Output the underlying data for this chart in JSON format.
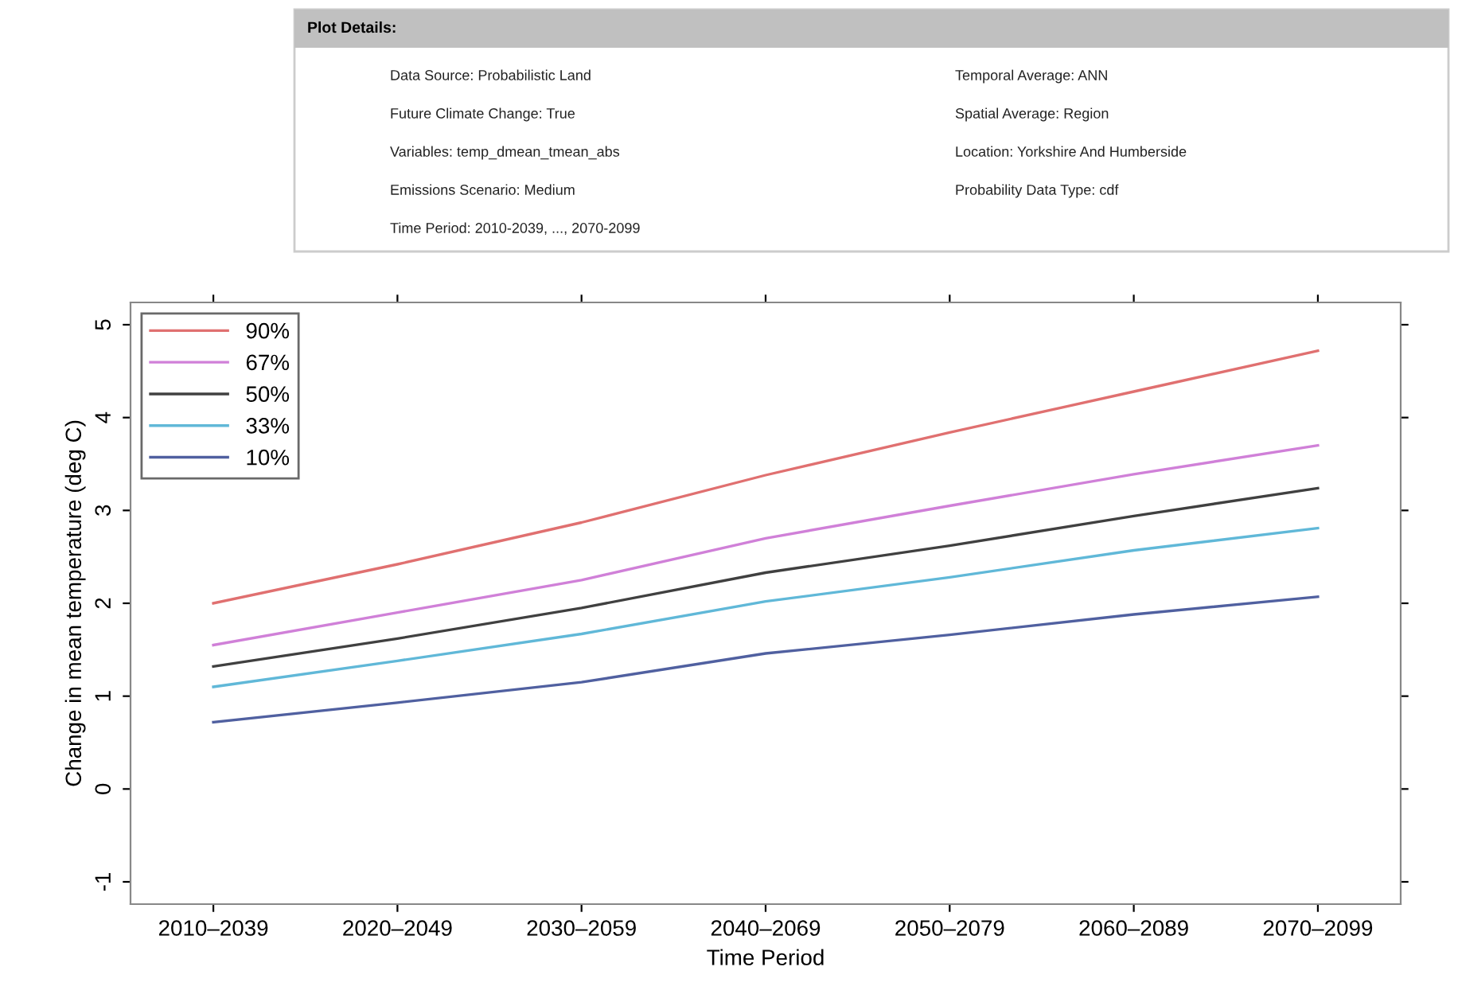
{
  "chart_data": {
    "type": "line",
    "title": "Plot Details:",
    "annotations": [
      "Data Source: Probabilistic Land",
      "Future Climate Change: True",
      "Variables: temp_dmean_tmean_abs",
      "Emissions Scenario: Medium",
      "Time Period: 2010-2039, ..., 2070-2099",
      "Temporal Average: ANN",
      "Spatial Average: Region",
      "Location: Yorkshire And Humberside",
      "Probability Data Type: cdf"
    ],
    "xlabel": "Time Period",
    "ylabel": "Change in mean temperature (deg C)",
    "categories": [
      "2010–2039",
      "2020–2049",
      "2030–2059",
      "2040–2069",
      "2050–2079",
      "2060–2089",
      "2070–2099"
    ],
    "series": [
      {
        "name": "90%",
        "color": "#e07070",
        "values": [
          2.0,
          2.42,
          2.87,
          3.38,
          3.84,
          4.28,
          4.72
        ]
      },
      {
        "name": "67%",
        "color": "#d080d8",
        "values": [
          1.55,
          1.9,
          2.25,
          2.7,
          3.05,
          3.39,
          3.7
        ]
      },
      {
        "name": "50%",
        "color": "#404040",
        "values": [
          1.32,
          1.62,
          1.95,
          2.33,
          2.62,
          2.94,
          3.24
        ]
      },
      {
        "name": "33%",
        "color": "#60b8d8",
        "values": [
          1.1,
          1.38,
          1.67,
          2.02,
          2.28,
          2.57,
          2.81
        ]
      },
      {
        "name": "10%",
        "color": "#5060a0",
        "values": [
          0.72,
          0.93,
          1.15,
          1.46,
          1.66,
          1.88,
          2.07
        ]
      }
    ],
    "ylim": [
      -1.24,
      5.24
    ],
    "yticks": [
      -1,
      0,
      1,
      2,
      3,
      4,
      5
    ],
    "grid": false,
    "legend": "top left",
    "marker": "none",
    "line_style": "solid"
  }
}
